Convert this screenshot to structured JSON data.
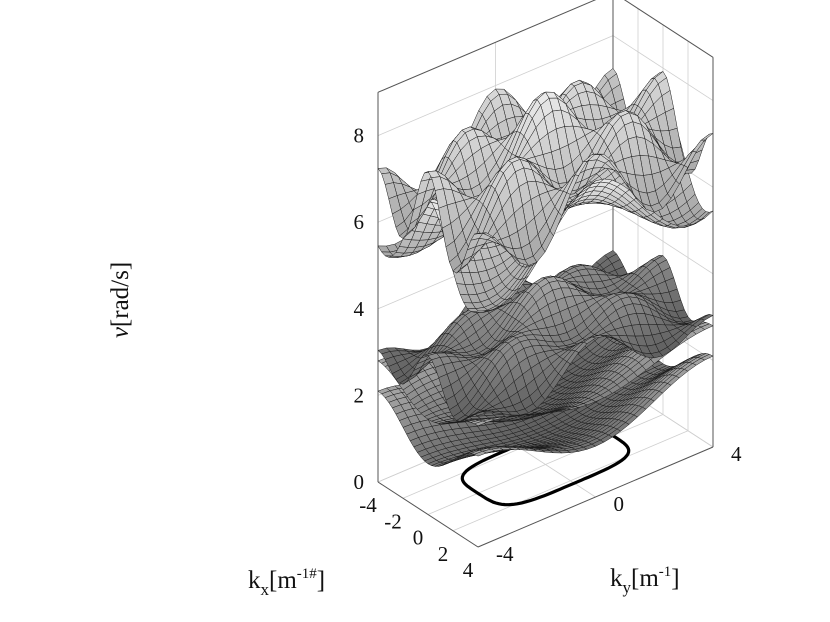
{
  "chart_data": {
    "type": "surface3d",
    "title": "",
    "xlabel": {
      "base": "k",
      "sub": "x",
      "unit_pre": "[m",
      "unit_sup": "-1#",
      "unit_post": "]"
    },
    "ylabel": {
      "base": "k",
      "sub": "y",
      "unit_pre": "[m",
      "unit_sup": "-1",
      "unit_post": "]"
    },
    "zlabel": {
      "sym": "ν",
      "unit": "[rad/s]"
    },
    "xlim": [
      -4,
      4
    ],
    "ylim": [
      -4,
      4
    ],
    "zlim": [
      0,
      9
    ],
    "xticks": [
      -4,
      -2,
      0,
      2,
      4
    ],
    "yticks": [
      -4,
      0,
      4
    ],
    "zticks": [
      0,
      2,
      4,
      6,
      8
    ],
    "xtick_labels": [
      "-4",
      "-2",
      "0",
      "2",
      "4"
    ],
    "ytick_labels": [
      "-4",
      "0",
      "4"
    ],
    "ztick_labels": [
      "0",
      "2",
      "4",
      "6",
      "8"
    ],
    "grid": true,
    "colormap": "gray",
    "series": [
      {
        "band": 1,
        "z_min": 0.8,
        "z_max": 2.1
      },
      {
        "band": 2,
        "z_min": 1.6,
        "z_max": 2.8
      },
      {
        "band": 3,
        "z_min": 2.6,
        "z_max": 4.3
      },
      {
        "band": 4,
        "z_min": 5.2,
        "z_max": 7.3
      },
      {
        "band": 5,
        "z_min": 6.0,
        "z_max": 8.6
      }
    ],
    "contour": {
      "level": 0,
      "radius": 2.3,
      "shape": "rounded-square"
    }
  }
}
